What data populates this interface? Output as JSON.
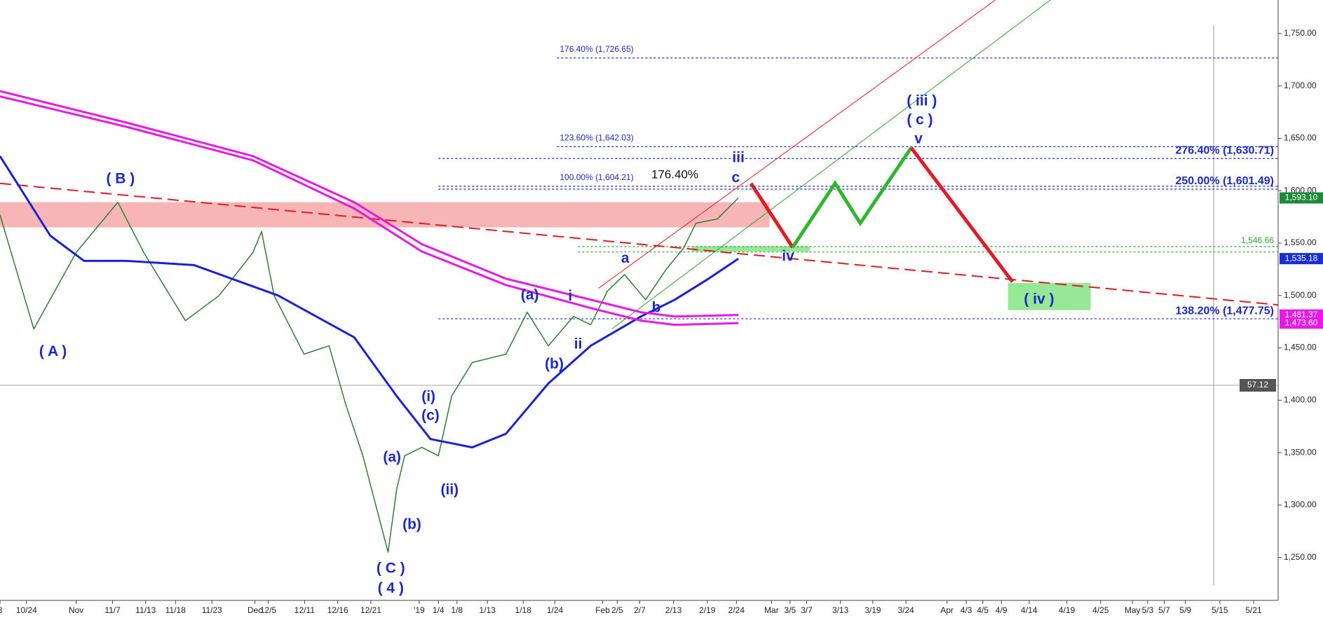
{
  "chart_data": {
    "type": "line",
    "xlim": [
      0,
      193
    ],
    "ylim": [
      1209,
      1782
    ],
    "yticks": [
      {
        "value": 1250,
        "label": "1,250.00"
      },
      {
        "value": 1300,
        "label": "1,300.00"
      },
      {
        "value": 1350,
        "label": "1,350.00"
      },
      {
        "value": 1400,
        "label": "1,400.00"
      },
      {
        "value": 1450,
        "label": "1,450.00"
      },
      {
        "value": 1500,
        "label": "1,500.00"
      },
      {
        "value": 1550,
        "label": "1,550.00"
      },
      {
        "value": 1600,
        "label": "1,600.00"
      },
      {
        "value": 1650,
        "label": "1,650.00"
      },
      {
        "value": 1700,
        "label": "1,700.00"
      },
      {
        "value": 1750,
        "label": "1,750.00"
      }
    ],
    "xticks": [
      {
        "value": 0,
        "label": "8"
      },
      {
        "value": 4,
        "label": "10/24"
      },
      {
        "value": 11.5,
        "label": "Nov"
      },
      {
        "value": 17,
        "label": "11/7"
      },
      {
        "value": 22,
        "label": "11/13"
      },
      {
        "value": 26.5,
        "label": "11/18"
      },
      {
        "value": 32,
        "label": "11/23"
      },
      {
        "value": 38.5,
        "label": "Dec"
      },
      {
        "value": 40.5,
        "label": "12/5"
      },
      {
        "value": 46,
        "label": "12/11"
      },
      {
        "value": 51,
        "label": "12/16"
      },
      {
        "value": 56,
        "label": "12/21"
      },
      {
        "value": 63.3,
        "label": "'19"
      },
      {
        "value": 66.2,
        "label": "1/4"
      },
      {
        "value": 69,
        "label": "1/8"
      },
      {
        "value": 73.6,
        "label": "1/13"
      },
      {
        "value": 79,
        "label": "1/18"
      },
      {
        "value": 83.8,
        "label": "1/24"
      },
      {
        "value": 91,
        "label": "Feb"
      },
      {
        "value": 93.2,
        "label": "2/5"
      },
      {
        "value": 96.6,
        "label": "2/7"
      },
      {
        "value": 101.7,
        "label": "2/13"
      },
      {
        "value": 106.8,
        "label": "2/19"
      },
      {
        "value": 111.2,
        "label": "2/24"
      },
      {
        "value": 116.5,
        "label": "Mar"
      },
      {
        "value": 119.3,
        "label": "3/5"
      },
      {
        "value": 121.8,
        "label": "3/7"
      },
      {
        "value": 126.9,
        "label": "3/13"
      },
      {
        "value": 131.8,
        "label": "3/19"
      },
      {
        "value": 136.8,
        "label": "3/24"
      },
      {
        "value": 143,
        "label": "Apr"
      },
      {
        "value": 145.9,
        "label": "4/3"
      },
      {
        "value": 148.4,
        "label": "4/5"
      },
      {
        "value": 151.2,
        "label": "4/9"
      },
      {
        "value": 155.4,
        "label": "4/14"
      },
      {
        "value": 161.1,
        "label": "4/19"
      },
      {
        "value": 166.2,
        "label": "4/25"
      },
      {
        "value": 171,
        "label": "May"
      },
      {
        "value": 173.3,
        "label": "5/3"
      },
      {
        "value": 175.8,
        "label": "5/7"
      },
      {
        "value": 179,
        "label": "5/9"
      },
      {
        "value": 184.2,
        "label": "5/15"
      },
      {
        "value": 189.3,
        "label": "5/21"
      }
    ],
    "series": [
      {
        "color": "#2f7d32",
        "width": 1.5,
        "x": [
          0,
          5.1,
          11.5,
          17.8,
          21.7,
          28,
          33.1,
          38.2,
          39.5,
          41.4,
          45.9,
          49.7,
          52.2,
          54.8,
          58.6,
          59.9,
          61.1,
          63.7,
          66.2,
          68.2,
          71.3,
          76.4,
          79.6,
          82.8,
          86.6,
          89.2,
          91.7,
          94.3,
          97.5,
          100.6,
          103.2,
          105.1,
          108.3,
          111.5
        ],
        "values": [
          1577,
          1468,
          1541,
          1589,
          1541,
          1476,
          1500,
          1541,
          1561,
          1500,
          1444,
          1452,
          1396,
          1347,
          1255,
          1315,
          1347,
          1355,
          1347,
          1404,
          1436,
          1444,
          1484,
          1452,
          1480,
          1472,
          1504,
          1520,
          1496,
          1525,
          1545,
          1569,
          1573,
          1593.1
        ]
      },
      {
        "color": "#1a22d6",
        "width": 3,
        "x": [
          0,
          7.6,
          12.7,
          19.1,
          29.3,
          42,
          53.5,
          59.9,
          65,
          71.3,
          76.4,
          82.8,
          89.2,
          96.8,
          101.9,
          107,
          111.5
        ],
        "values": [
          1633,
          1557,
          1533,
          1533,
          1529,
          1500,
          1460,
          1404,
          1363,
          1355,
          1368,
          1416,
          1452,
          1480,
          1496,
          1516,
          1535.18
        ]
      },
      {
        "color": "#e619e6",
        "width": 3,
        "x": [
          0,
          19.1,
          38.2,
          53.5,
          63.7,
          76.4,
          89.2,
          96.8,
          101.9,
          111.5
        ],
        "values": [
          1695,
          1665,
          1633,
          1589,
          1549,
          1516,
          1496,
          1484,
          1480,
          1481.37
        ]
      },
      {
        "color": "#e619e6",
        "width": 3,
        "x": [
          0,
          19.1,
          38.2,
          53.5,
          63.7,
          76.4,
          89.2,
          96.8,
          101.9,
          111.5
        ],
        "values": [
          1690,
          1661,
          1629,
          1583,
          1542,
          1510,
          1488,
          1476,
          1472,
          1473.6
        ]
      }
    ],
    "projections": [
      {
        "color": "#e01b24",
        "x": [
          113.4,
          119.7
        ],
        "values": [
          1607,
          1546
        ]
      },
      {
        "color": "#2fb52f",
        "x": [
          119.7,
          126.1,
          129.9,
          137.6
        ],
        "values": [
          1546,
          1607,
          1569,
          1641
        ]
      },
      {
        "color": "#e01b24",
        "x": [
          137.6,
          152.9
        ],
        "values": [
          1641,
          1513
        ]
      }
    ],
    "trendlines": [
      {
        "color": "#e01b24",
        "dash": true,
        "x": [
          0,
          193
        ],
        "values": [
          1607,
          1491
        ]
      },
      {
        "color": "#e01b24",
        "dash": false,
        "x": [
          90.4,
          150.3
        ],
        "values": [
          1507,
          1782
        ]
      },
      {
        "color": "#2fa02f",
        "dash": false,
        "x": [
          92.4,
          158.6
        ],
        "values": [
          1468,
          1782
        ]
      }
    ],
    "zones": [
      {
        "color": "#f7a8a8",
        "x": [
          0,
          116.2
        ],
        "values": [
          1565,
          1589
        ]
      },
      {
        "color": "#84e384",
        "x": [
          152.2,
          164.7
        ],
        "values": [
          1486,
          1512
        ]
      },
      {
        "color": "#84e384",
        "x": [
          104.5,
          122.3
        ],
        "values": [
          1542,
          1547
        ]
      }
    ],
    "levels": [
      {
        "value": 1726.65,
        "x_start": 84.1,
        "label": "176.40% (1,726.65)",
        "side": "left",
        "color": "#1c28c8"
      },
      {
        "value": 1642.03,
        "x_start": 84.1,
        "label": "123.60% (1,642.03)",
        "side": "left",
        "color": "#1c28c8"
      },
      {
        "value": 1630.71,
        "x_start": 66.2,
        "label": "276.40% (1,630.71)",
        "side": "right",
        "color": "#1c28c8"
      },
      {
        "value": 1604.21,
        "x_start": 66.2,
        "label": "100.00% (1,604.21)",
        "side": "left",
        "color": "#1c28c8"
      },
      {
        "value": 1601.49,
        "x_start": 66.2,
        "label": "250.00% (1,601.49)",
        "side": "right",
        "color": "#1c28c8"
      },
      {
        "value": 1546.66,
        "x_start": 87.3,
        "label": "1,546.66",
        "side": "tag",
        "color": "#2fa02f"
      },
      {
        "value": 1541.5,
        "x_start": 87.3,
        "color": "#2fa02f"
      },
      {
        "value": 1477.75,
        "x_start": 66.2,
        "label": "138.20% (1,477.75)",
        "side": "right",
        "color": "#1c28c8"
      }
    ],
    "annotations": [
      {
        "text": "( A )",
        "x": 8,
        "y": 1446
      },
      {
        "text": "( B )",
        "x": 18.2,
        "y": 1611
      },
      {
        "text": "( C )",
        "x": 59,
        "y": 1239
      },
      {
        "text": "( 4 )",
        "x": 59,
        "y": 1220
      },
      {
        "text": "(a)",
        "x": 59.2,
        "y": 1345
      },
      {
        "text": "(b)",
        "x": 62.2,
        "y": 1281
      },
      {
        "text": "(i)",
        "x": 64.7,
        "y": 1403
      },
      {
        "text": "(c)",
        "x": 65,
        "y": 1385
      },
      {
        "text": "(ii)",
        "x": 67.9,
        "y": 1314
      },
      {
        "text": "(a)",
        "x": 80,
        "y": 1500
      },
      {
        "text": "(b)",
        "x": 83.7,
        "y": 1434
      },
      {
        "text": "i",
        "x": 86.1,
        "y": 1499
      },
      {
        "text": "ii",
        "x": 87.3,
        "y": 1453
      },
      {
        "text": "a",
        "x": 94.4,
        "y": 1535
      },
      {
        "text": "b",
        "x": 99.1,
        "y": 1488
      },
      {
        "text": "iii",
        "x": 111.5,
        "y": 1631
      },
      {
        "text": "c",
        "x": 111.1,
        "y": 1612
      },
      {
        "text": "iv",
        "x": 119,
        "y": 1537
      },
      {
        "text": "( iii )",
        "x": 139.2,
        "y": 1685
      },
      {
        "text": "( c )",
        "x": 138.9,
        "y": 1667
      },
      {
        "text": "v",
        "x": 138.7,
        "y": 1649
      },
      {
        "text": "( iv )",
        "x": 156.9,
        "y": 1496
      }
    ],
    "note": {
      "text": "176.40%",
      "x": 101.9,
      "y": 1615
    },
    "price_tags": [
      {
        "value": 1593.1,
        "label": "1,593.10",
        "color": "#1e8a3c"
      },
      {
        "value": 1535.18,
        "label": "1,535.18",
        "color": "#1a2fd0"
      },
      {
        "value": 1481.37,
        "label": "1,481.37",
        "color": "#e619e6"
      },
      {
        "value": 1473.6,
        "label": "1,473.60",
        "color": "#e619e6"
      }
    ],
    "reference_line": {
      "label": "57.12",
      "color": "#555555"
    }
  }
}
